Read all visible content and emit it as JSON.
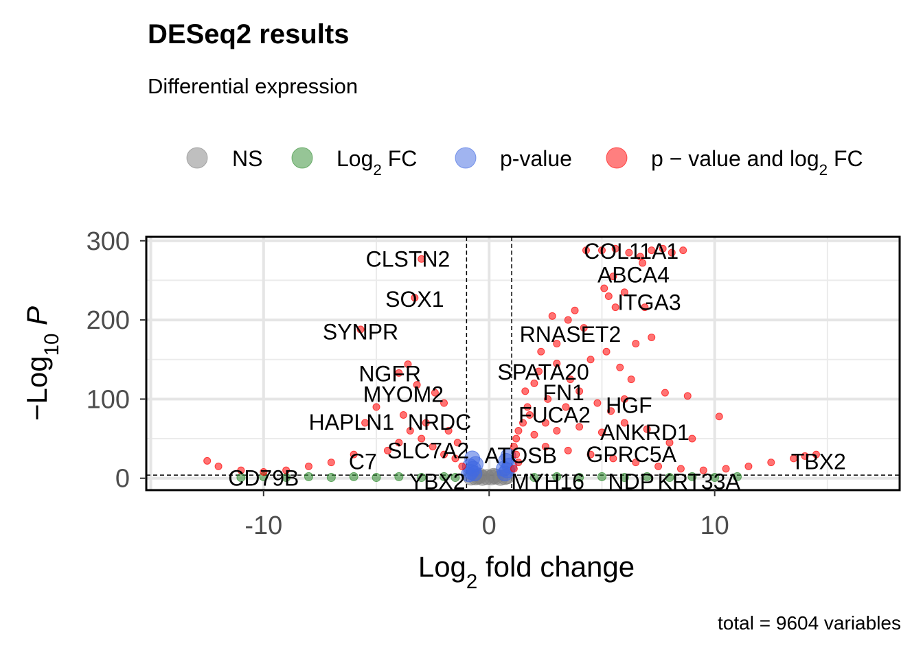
{
  "title": "DESeq2 results",
  "subtitle": "Differential expression",
  "caption": "total = 9604 variables",
  "chart_data": {
    "type": "scatter",
    "xlabel": "Log2 fold change",
    "ylabel": "-Log10 P",
    "xlim": [
      -15.2,
      18.2
    ],
    "ylim": [
      -15,
      305
    ],
    "x_ticks": [
      -10,
      0,
      10
    ],
    "y_ticks": [
      0,
      100,
      200,
      300
    ],
    "grid": true,
    "legend_position": "top",
    "thresholds": {
      "log2fc": 1,
      "neg_log10_p": 4
    },
    "legend": [
      {
        "key": "ns",
        "label": "NS",
        "color": "#808080"
      },
      {
        "key": "fc",
        "label": "Log2 FC",
        "color": "#2e8b2e"
      },
      {
        "key": "p",
        "label": "p-value",
        "color": "#4169e1"
      },
      {
        "key": "both",
        "label": "p - value and log2 FC",
        "color": "#ff0000"
      }
    ],
    "series": [
      {
        "name": "NS",
        "key": "ns",
        "color": "#808080",
        "points": [
          [
            -0.6,
            1
          ],
          [
            -0.5,
            2
          ],
          [
            -0.3,
            0.5
          ],
          [
            -0.1,
            1.5
          ],
          [
            0.1,
            1
          ],
          [
            0.3,
            2
          ],
          [
            0.5,
            0.5
          ],
          [
            0.7,
            1.5
          ],
          [
            -0.8,
            0.8
          ],
          [
            0.8,
            2.5
          ],
          [
            -0.4,
            3
          ],
          [
            0.2,
            3
          ]
        ]
      },
      {
        "name": "Log2 FC",
        "key": "fc",
        "color": "#2e8b2e",
        "points": [
          [
            -11,
            1
          ],
          [
            -10,
            2
          ],
          [
            -9,
            1
          ],
          [
            -8,
            2
          ],
          [
            -7,
            1
          ],
          [
            -6,
            2
          ],
          [
            -5,
            1
          ],
          [
            -4,
            2
          ],
          [
            -3,
            1
          ],
          [
            -2,
            2
          ],
          [
            -1.5,
            1
          ],
          [
            2,
            1
          ],
          [
            3,
            2
          ],
          [
            4,
            1
          ],
          [
            5,
            2
          ],
          [
            6,
            1
          ],
          [
            7,
            2
          ],
          [
            8,
            1
          ],
          [
            9,
            2
          ],
          [
            10,
            1
          ],
          [
            11,
            2
          ]
        ]
      },
      {
        "name": "p-value",
        "key": "p",
        "color": "#4169e1",
        "points": [
          [
            -0.9,
            5
          ],
          [
            -0.8,
            8
          ],
          [
            -0.7,
            12
          ],
          [
            -0.6,
            18
          ],
          [
            -0.75,
            25
          ],
          [
            -0.85,
            15
          ],
          [
            -0.65,
            6
          ],
          [
            0.7,
            6
          ],
          [
            0.8,
            10
          ],
          [
            0.9,
            16
          ],
          [
            0.75,
            22
          ],
          [
            0.85,
            28
          ],
          [
            0.65,
            12
          ]
        ]
      },
      {
        "name": "p - value and log2 FC",
        "key": "both",
        "color": "#ff0000",
        "points": [
          [
            -3,
            277
          ],
          [
            -3.3,
            228
          ],
          [
            -5.7,
            188
          ],
          [
            -3.6,
            144
          ],
          [
            -4,
            133
          ],
          [
            -3.2,
            118
          ],
          [
            -2.4,
            108
          ],
          [
            -2,
            95
          ],
          [
            -5,
            90
          ],
          [
            -5.5,
            70
          ],
          [
            -3.5,
            60
          ],
          [
            -3,
            50
          ],
          [
            -2.5,
            40
          ],
          [
            -2,
            30
          ],
          [
            -1.5,
            25
          ],
          [
            -1.2,
            15
          ],
          [
            -4,
            45
          ],
          [
            -4.5,
            35
          ],
          [
            -6,
            30
          ],
          [
            -7,
            20
          ],
          [
            -8,
            15
          ],
          [
            -9,
            10
          ],
          [
            -10,
            8
          ],
          [
            -11,
            10
          ],
          [
            -12,
            15
          ],
          [
            -12.5,
            22
          ],
          [
            -3.8,
            80
          ],
          [
            -2.8,
            70
          ],
          [
            -1.8,
            60
          ],
          [
            -1.4,
            45
          ],
          [
            4.3,
            288
          ],
          [
            5,
            288
          ],
          [
            5.6,
            290
          ],
          [
            6.2,
            285
          ],
          [
            6.7,
            280
          ],
          [
            7.2,
            288
          ],
          [
            7.7,
            290
          ],
          [
            8.1,
            285
          ],
          [
            8.6,
            288
          ],
          [
            6.8,
            272
          ],
          [
            5.5,
            255
          ],
          [
            5.1,
            240
          ],
          [
            5.3,
            230
          ],
          [
            6,
            235
          ],
          [
            6.9,
            216
          ],
          [
            5.6,
            216
          ],
          [
            3.8,
            212
          ],
          [
            2.8,
            205
          ],
          [
            3.5,
            200
          ],
          [
            4.2,
            190
          ],
          [
            7.2,
            178
          ],
          [
            6.5,
            170
          ],
          [
            5.2,
            160
          ],
          [
            4.5,
            150
          ],
          [
            3,
            145
          ],
          [
            2.2,
            135
          ],
          [
            2,
            120
          ],
          [
            1.6,
            110
          ],
          [
            2.6,
            100
          ],
          [
            3.4,
            90
          ],
          [
            1.8,
            80
          ],
          [
            1.5,
            70
          ],
          [
            1.3,
            60
          ],
          [
            1.2,
            50
          ],
          [
            1.1,
            40
          ],
          [
            1.2,
            30
          ],
          [
            1.3,
            20
          ],
          [
            1.1,
            12
          ],
          [
            2,
            55
          ],
          [
            3,
            60
          ],
          [
            4,
            65
          ],
          [
            5,
            58
          ],
          [
            6,
            70
          ],
          [
            7,
            62
          ],
          [
            7.8,
            108
          ],
          [
            8.8,
            104
          ],
          [
            10.2,
            78
          ],
          [
            2.5,
            40
          ],
          [
            3.5,
            35
          ],
          [
            4.5,
            30
          ],
          [
            5.5,
            25
          ],
          [
            6.5,
            20
          ],
          [
            7.5,
            15
          ],
          [
            8.5,
            12
          ],
          [
            9.5,
            10
          ],
          [
            10.5,
            12
          ],
          [
            11.5,
            15
          ],
          [
            12.5,
            20
          ],
          [
            13.5,
            25
          ],
          [
            14,
            28
          ],
          [
            14.5,
            30
          ],
          [
            9,
            50
          ],
          [
            8,
            45
          ],
          [
            6,
            100
          ],
          [
            4,
            110
          ],
          [
            2.3,
            160
          ],
          [
            3,
            170
          ],
          [
            5.8,
            140
          ],
          [
            6.3,
            125
          ],
          [
            3.6,
            125
          ],
          [
            2.5,
            70
          ],
          [
            1.7,
            90
          ],
          [
            4.8,
            95
          ],
          [
            5.4,
            85
          ]
        ]
      }
    ],
    "labels": [
      {
        "text": "COL11A1",
        "x": 6.3,
        "y": 287,
        "anchor": "middle"
      },
      {
        "text": "CLSTN2",
        "x": -3.6,
        "y": 277,
        "anchor": "middle"
      },
      {
        "text": "ABCA4",
        "x": 6.4,
        "y": 257,
        "anchor": "middle"
      },
      {
        "text": "SOX1",
        "x": -3.3,
        "y": 226,
        "anchor": "middle"
      },
      {
        "text": "ITGA3",
        "x": 7.1,
        "y": 222,
        "anchor": "middle"
      },
      {
        "text": "SYNPR",
        "x": -5.7,
        "y": 185,
        "anchor": "middle"
      },
      {
        "text": "RNASET2",
        "x": 3.6,
        "y": 182,
        "anchor": "middle"
      },
      {
        "text": "SPATA20",
        "x": 2.4,
        "y": 134,
        "anchor": "middle"
      },
      {
        "text": "NGFR",
        "x": -4.4,
        "y": 132,
        "anchor": "middle"
      },
      {
        "text": "MYOM2",
        "x": -3.8,
        "y": 106,
        "anchor": "middle"
      },
      {
        "text": "FN1",
        "x": 3.3,
        "y": 108,
        "anchor": "middle"
      },
      {
        "text": "HGF",
        "x": 6.2,
        "y": 92,
        "anchor": "middle"
      },
      {
        "text": "FUCA2",
        "x": 2.9,
        "y": 80,
        "anchor": "middle"
      },
      {
        "text": "HAPLN1",
        "x": -6.1,
        "y": 71,
        "anchor": "middle"
      },
      {
        "text": "NRDC",
        "x": -2.2,
        "y": 71,
        "anchor": "middle"
      },
      {
        "text": "ANKRD1",
        "x": 6.9,
        "y": 58,
        "anchor": "middle"
      },
      {
        "text": "SLC7A2",
        "x": -2.7,
        "y": 35,
        "anchor": "middle"
      },
      {
        "text": "GPRC5A",
        "x": 6.3,
        "y": 30,
        "anchor": "middle"
      },
      {
        "text": "ATOSB",
        "x": 1.4,
        "y": 29,
        "anchor": "middle"
      },
      {
        "text": "C7",
        "x": -5.6,
        "y": 21,
        "anchor": "middle"
      },
      {
        "text": "TBX2",
        "x": 14.6,
        "y": 21,
        "anchor": "middle"
      },
      {
        "text": "CD79B",
        "x": -10,
        "y": 0,
        "anchor": "middle"
      },
      {
        "text": "YBX2",
        "x": -2.3,
        "y": -4,
        "anchor": "middle"
      },
      {
        "text": "MYH16",
        "x": 2.6,
        "y": -4,
        "anchor": "middle"
      },
      {
        "text": "NDP",
        "x": 6.3,
        "y": -4,
        "anchor": "middle"
      },
      {
        "text": "KRT33A",
        "x": 9.3,
        "y": -4,
        "anchor": "middle"
      }
    ]
  }
}
